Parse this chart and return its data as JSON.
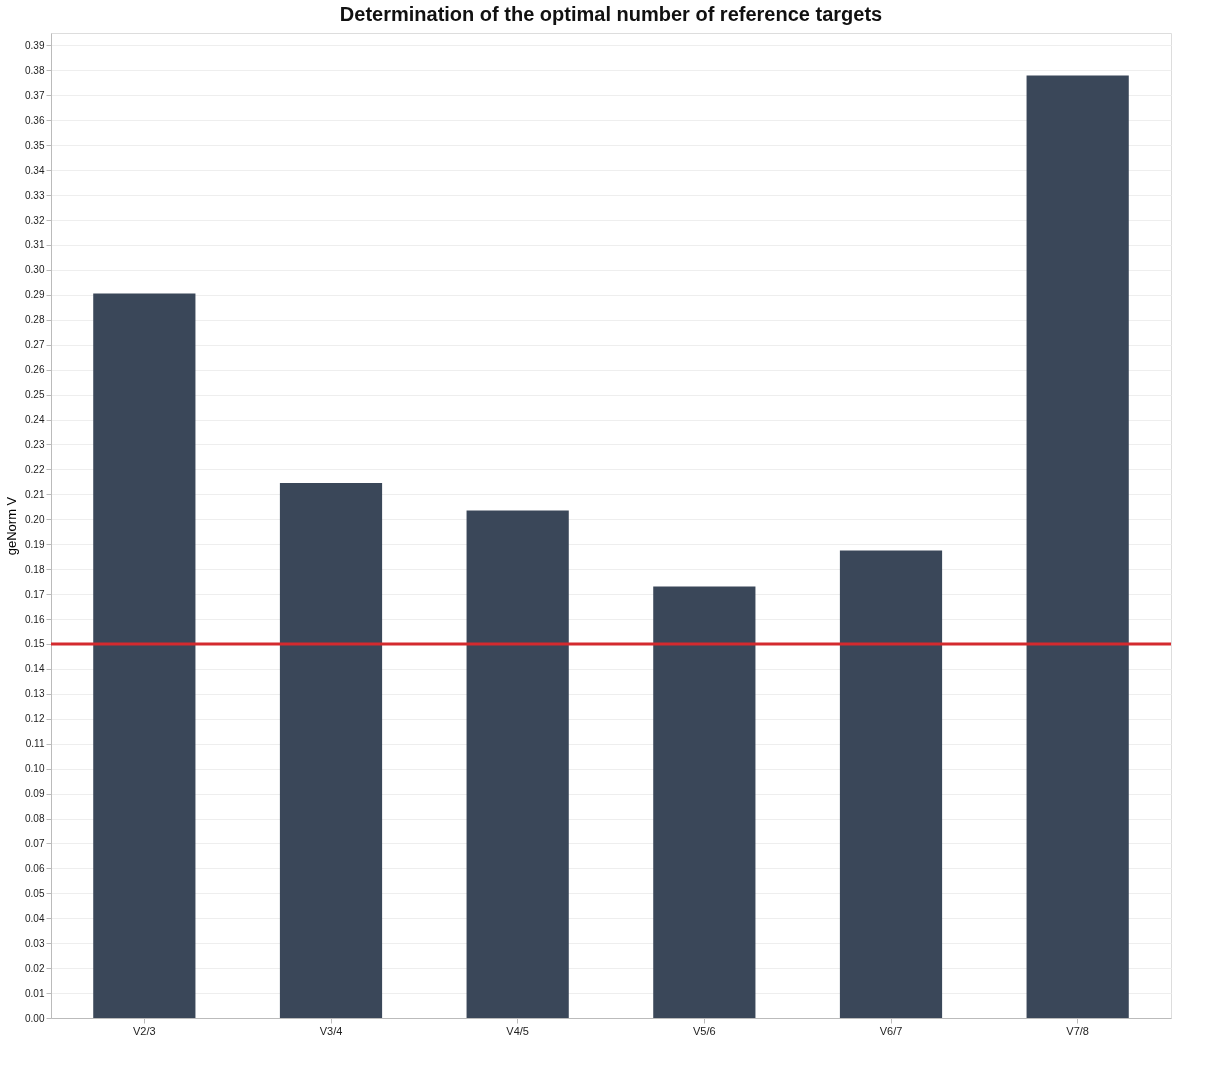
{
  "chart_data": {
    "type": "bar",
    "title": "Determination of the optimal number of reference targets",
    "ylabel": "geNorm V",
    "categories": [
      "V2/3",
      "V3/4",
      "V4/5",
      "V5/6",
      "V6/7",
      "V7/8"
    ],
    "values": [
      0.2905,
      0.2145,
      0.2035,
      0.173,
      0.1875,
      0.378
    ],
    "color": "#3a4759",
    "ylim": [
      0,
      0.395
    ],
    "yticks": [
      {
        "value": 0,
        "label": "0.00"
      },
      0.01,
      0.02,
      0.03,
      0.04,
      0.05,
      0.06,
      0.07,
      0.08,
      0.09,
      {
        "value": 0.1,
        "label": "0.10"
      },
      0.11,
      0.12,
      0.13,
      0.14,
      0.15,
      0.16,
      0.17,
      0.18,
      0.19,
      {
        "value": 0.2,
        "label": "0.20"
      },
      0.21,
      0.22,
      0.23,
      0.24,
      0.25,
      0.26,
      0.27,
      0.28,
      0.29,
      {
        "value": 0.3,
        "label": "0.30"
      },
      0.31,
      0.32,
      0.33,
      0.34,
      0.35,
      0.36,
      0.37,
      0.38,
      0.39
    ],
    "ref_lines": [
      {
        "axis": "y",
        "value": 0.15,
        "color": "#d42a2e"
      }
    ],
    "grid": "y"
  }
}
